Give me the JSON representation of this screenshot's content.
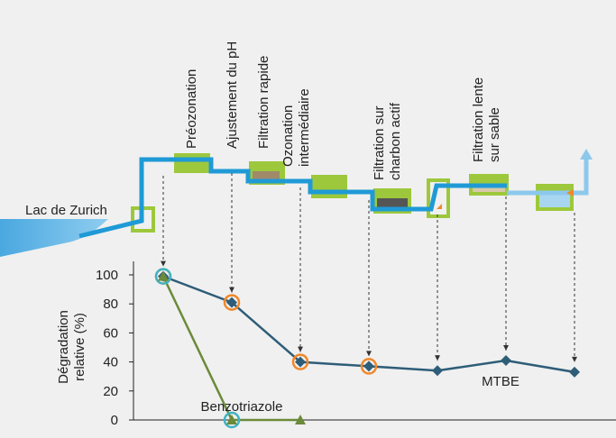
{
  "chart_data": {
    "type": "line",
    "source_label": "Lac de Zurich",
    "ylabel": [
      "Dégradation",
      "relative (%)"
    ],
    "categories": [
      [
        "Préozonation"
      ],
      [
        "Ajustement du pH"
      ],
      [
        "Filtration rapide"
      ],
      [
        "Ozonation",
        "intermédiaire"
      ],
      [
        "Filtration sur",
        "charbon actif"
      ],
      [
        "Filtration lente",
        "sur sable"
      ],
      null
    ],
    "series": [
      {
        "name": "MTBE",
        "color": "#2e5d78",
        "marker": "diamond",
        "values": [
          99,
          81,
          40,
          37,
          34,
          41,
          33
        ],
        "circled": [
          0,
          1,
          2,
          3
        ],
        "circle_color": "#f0882a"
      },
      {
        "name": "Benzotriazole",
        "color": "#6b8a3a",
        "marker": "triangle",
        "values": [
          99,
          0,
          0,
          null,
          null,
          null,
          null
        ],
        "circled": [
          0,
          1
        ],
        "circle_color": "#3fb3c4"
      }
    ],
    "ylim": [
      0,
      100
    ],
    "yticks": [
      0,
      20,
      40,
      60,
      80,
      100
    ]
  }
}
